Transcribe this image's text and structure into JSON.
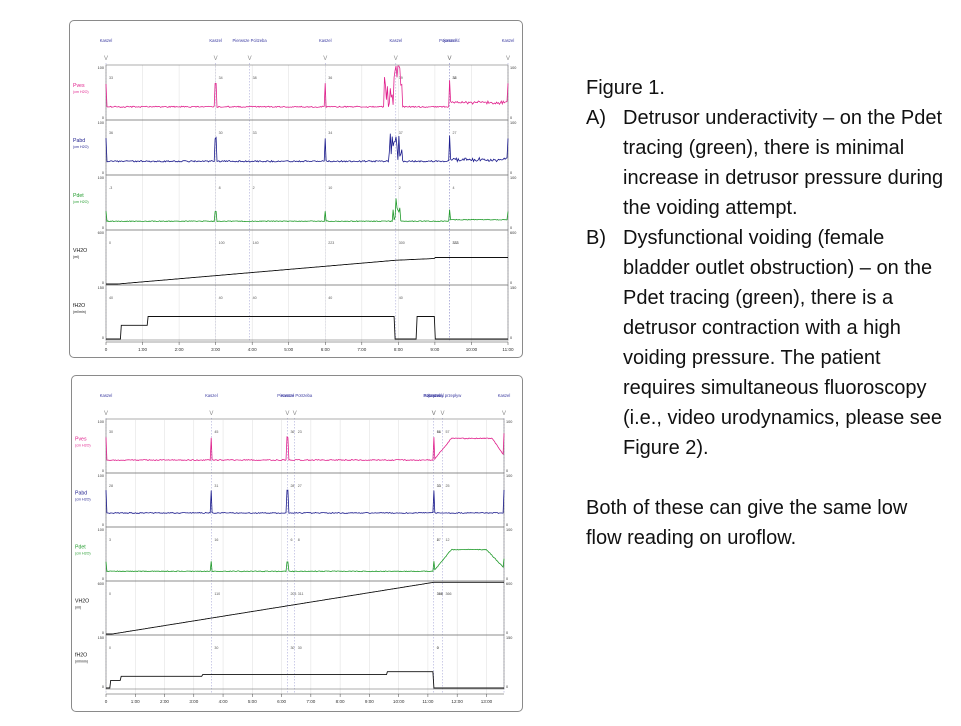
{
  "caption": {
    "figure": "Figure 1.",
    "items": [
      {
        "label": "A)",
        "text": "Detrusor underactivity – on the Pdet tracing (green), there is minimal increase in detrusor pressure during the voiding attempt."
      },
      {
        "label": "B)",
        "text": "Dysfunctional voiding (female bladder outlet obstruction) – on the Pdet tracing (green), there is a detrusor contraction with a high voiding pressure. The patient requires simultaneous fluoroscopy (i.e., video urodynamics, please see Figure 2)."
      }
    ],
    "footer": "Both of these can give the same low flow reading on uroflow."
  },
  "colors": {
    "pves": "#e0208c",
    "pabd": "#1a1a8c",
    "pdet": "#1f9a2a",
    "black": "#111111",
    "event": "#3a3aa0",
    "grid": "#d4d4d4"
  },
  "chart_data": [
    {
      "type": "line",
      "panel": "A",
      "events": [
        {
          "t": 0.0,
          "label": "Kaszel"
        },
        {
          "t": 3.0,
          "label": "Kaszel"
        },
        {
          "t": 3.93,
          "label": "Pierwsze Pcitzeba"
        },
        {
          "t": 6.0,
          "label": "Kaszel"
        },
        {
          "t": 7.93,
          "label": "Kaszel"
        },
        {
          "t": 9.4,
          "label": "Pojemność"
        },
        {
          "t": 9.4,
          "label": "Kaszel"
        },
        {
          "t": 11.0,
          "label": "Kaszel"
        }
      ],
      "x_ticks": [
        "0",
        "1:00",
        "2:00",
        "3:00",
        "4:00",
        "5:00",
        "6:00",
        "7:00",
        "8:00",
        "9:00",
        "10:00",
        "11:00"
      ],
      "channels": [
        {
          "name": "Pves",
          "unit": "(cm H2O)",
          "color": "#e0208c",
          "ymax": "100",
          "ymin": "0",
          "kind": "pves",
          "values": [
            "33",
            "34",
            "38",
            "36",
            "39",
            "38",
            "32"
          ]
        },
        {
          "name": "Pabd",
          "unit": "(cm H2O)",
          "color": "#1a1a8c",
          "ymax": "100",
          "ymin": "0",
          "kind": "pabd",
          "values": [
            "36",
            "30",
            "33",
            "34",
            "37",
            "27"
          ]
        },
        {
          "name": "Pdet",
          "unit": "(cm H2O)",
          "color": "#1f9a2a",
          "ymax": "100",
          "ymin": "0",
          "kind": "pdet",
          "values": [
            "-3",
            "8",
            "2",
            "10",
            "2",
            "4"
          ]
        },
        {
          "name": "VH2O",
          "unit": "(ml)",
          "color": "#111111",
          "ymax": "600",
          "ymin": "0",
          "kind": "vol",
          "values": [
            "0",
            "100",
            "140",
            "223",
            "300",
            "333",
            "333"
          ]
        },
        {
          "name": "fH2O",
          "unit": "(ml/min)",
          "color": "#111111",
          "ymax": "150",
          "ymin": "0",
          "kind": "fill",
          "values": [
            "40",
            "40",
            "40",
            "40",
            "40"
          ]
        }
      ]
    },
    {
      "type": "line",
      "panel": "B",
      "events": [
        {
          "t": 0.0,
          "label": "Kaszel"
        },
        {
          "t": 3.6,
          "label": "Kaszel"
        },
        {
          "t": 6.2,
          "label": "Kaszel"
        },
        {
          "t": 6.45,
          "label": "Pierwsze Potrzeba"
        },
        {
          "t": 11.2,
          "label": "Kaszel"
        },
        {
          "t": 11.2,
          "label": "Pojemność"
        },
        {
          "t": 11.5,
          "label": "Szczytowy przepływ"
        },
        {
          "t": 13.6,
          "label": "Kaszel"
        }
      ],
      "x_ticks": [
        "0",
        "1:00",
        "2:00",
        "3:00",
        "4:00",
        "5:00",
        "6:00",
        "7:00",
        "8:00",
        "9:00",
        "10:00",
        "11:00",
        "12:00",
        "13:00"
      ],
      "channels": [
        {
          "name": "Pves",
          "unit": "(cm H2O)",
          "color": "#e0208c",
          "ymax": "100",
          "ymin": "0",
          "kind": "pves2",
          "values": [
            "30",
            "45",
            "36",
            "23",
            "34",
            "61",
            "57"
          ]
        },
        {
          "name": "Pabd",
          "unit": "(cm H2O)",
          "color": "#1a1a8c",
          "ymax": "100",
          "ymin": "0",
          "kind": "pabd2",
          "values": [
            "28",
            "31",
            "28",
            "27",
            "33",
            "33",
            "25"
          ]
        },
        {
          "name": "Pdet",
          "unit": "(cm H2O)",
          "color": "#1f9a2a",
          "ymax": "100",
          "ymin": "0",
          "kind": "pdet2",
          "values": [
            "3",
            "16",
            "6",
            "8",
            "8",
            "27",
            "12"
          ]
        },
        {
          "name": "VH2O",
          "unit": "(ml)",
          "color": "#111111",
          "ymax": "600",
          "ymin": "0",
          "kind": "vol2",
          "values": [
            "0",
            "110",
            "203",
            "311",
            "366",
            "366",
            "366"
          ]
        },
        {
          "name": "fH2O",
          "unit": "(ml/min)",
          "color": "#111111",
          "ymax": "150",
          "ymin": "0",
          "kind": "fill2",
          "values": [
            "0",
            "30",
            "30",
            "30",
            "0",
            "0"
          ]
        }
      ]
    }
  ]
}
